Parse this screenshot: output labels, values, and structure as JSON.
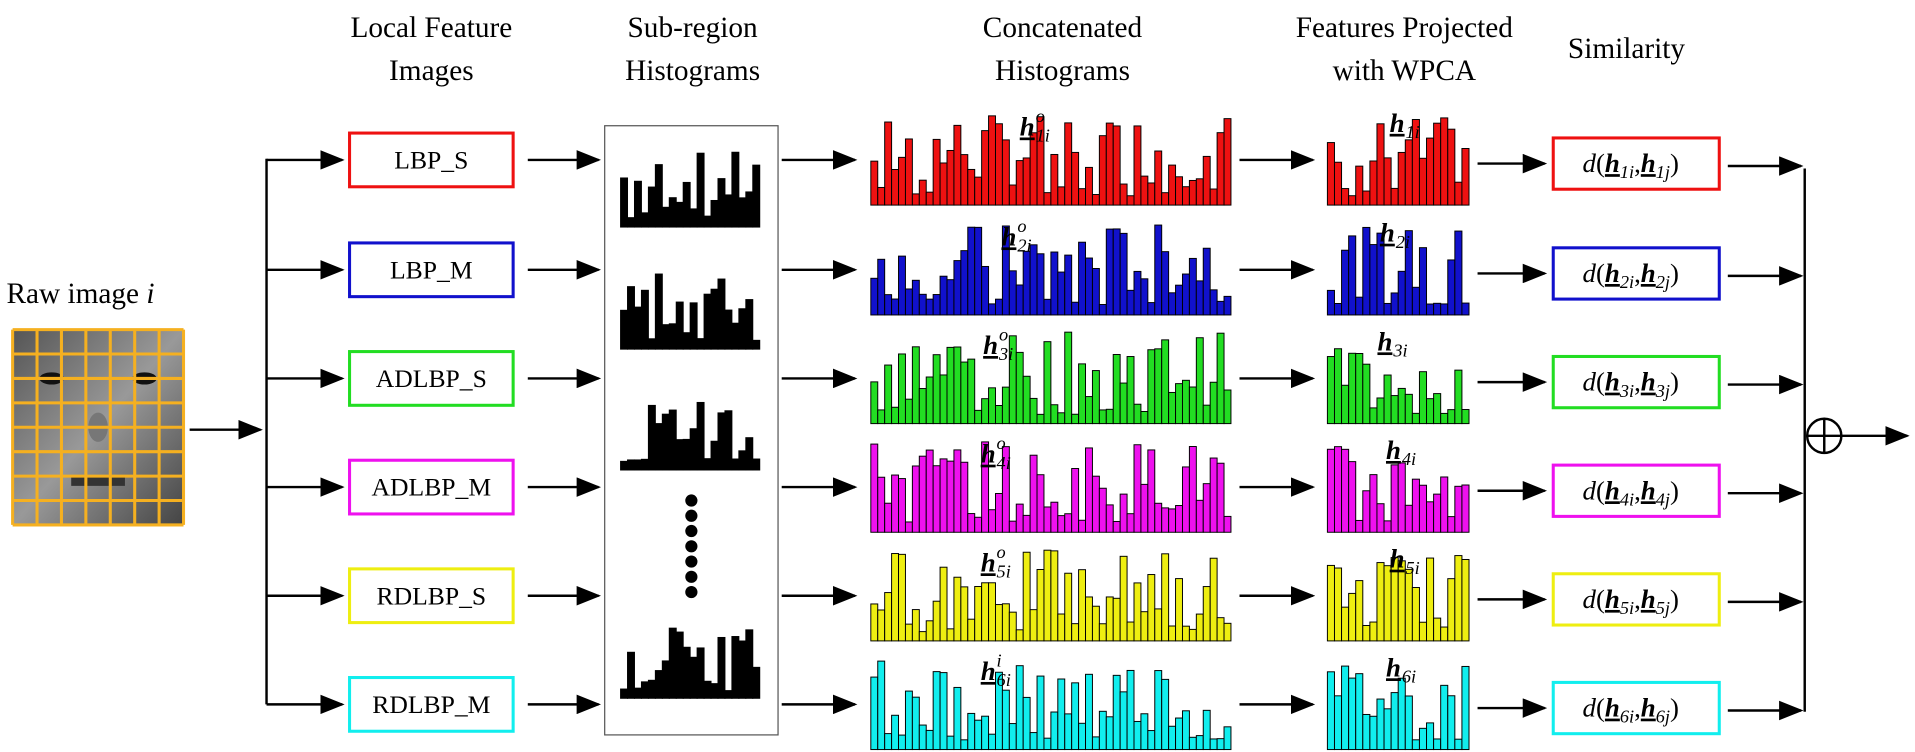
{
  "header": {
    "columns": [
      [
        "Local Feature",
        "Images"
      ],
      [
        "Sub-region",
        "Histograms"
      ],
      [
        "Concatenated",
        "Histograms"
      ],
      [
        "Features Projected",
        "with WPCA"
      ],
      [
        "Similarity"
      ]
    ]
  },
  "raw_image": {
    "label": "Raw image ",
    "var": "i"
  },
  "vector_symbol": "h",
  "similarity": {
    "func": "d",
    "open": "(",
    "sep": ",",
    "close": ")"
  },
  "rows": [
    {
      "feature": "LBP_S",
      "color": "#ee1111",
      "concat_sup": "o",
      "concat_sub": "1i",
      "proj_sub": "1i",
      "sim_a": "1i",
      "sim_b": "1j"
    },
    {
      "feature": "LBP_M",
      "color": "#1111cc",
      "concat_sup": "o",
      "concat_sub": "2i",
      "proj_sub": "2i",
      "sim_a": "2i",
      "sim_b": "2j"
    },
    {
      "feature": "ADLBP_S",
      "color": "#22dd22",
      "concat_sup": "o",
      "concat_sub": "3i",
      "proj_sub": "3i",
      "sim_a": "3i",
      "sim_b": "3j"
    },
    {
      "feature": "ADLBP_M",
      "color": "#ee11ee",
      "concat_sup": "o",
      "concat_sub": "4i",
      "proj_sub": "4i",
      "sim_a": "4i",
      "sim_b": "4j"
    },
    {
      "feature": "RDLBP_S",
      "color": "#eeee11",
      "concat_sup": "o",
      "concat_sub": "5i",
      "proj_sub": "5i",
      "sim_a": "5i",
      "sim_b": "5j"
    },
    {
      "feature": "RDLBP_M",
      "color": "#11eeee",
      "concat_sup": "i",
      "concat_sub": "6i",
      "proj_sub": "6i",
      "sim_a": "6i",
      "sim_b": "6j"
    }
  ]
}
